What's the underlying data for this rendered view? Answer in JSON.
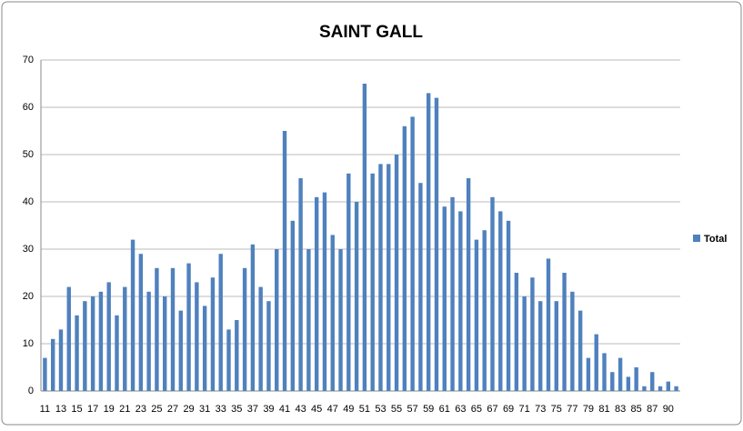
{
  "chart_data": {
    "type": "bar",
    "title": "SAINT GALL",
    "categories": [
      "11",
      null,
      "13",
      null,
      "15",
      null,
      "17",
      null,
      "19",
      null,
      "21",
      null,
      "23",
      null,
      "25",
      null,
      "27",
      null,
      "29",
      null,
      "31",
      null,
      "33",
      null,
      "35",
      null,
      "37",
      null,
      "39",
      null,
      "41",
      null,
      "43",
      null,
      "45",
      null,
      "47",
      null,
      "49",
      null,
      "51",
      null,
      "53",
      null,
      "55",
      null,
      "57",
      null,
      "59",
      null,
      "61",
      null,
      "63",
      null,
      "65",
      null,
      "67",
      null,
      "69",
      null,
      "71",
      null,
      "73",
      null,
      "75",
      null,
      "77",
      null,
      "79",
      null,
      "81",
      null,
      "83",
      null,
      "85",
      null,
      "87",
      null,
      "90",
      null
    ],
    "series": [
      {
        "name": "Total",
        "color": "#4f81bd",
        "values": [
          7,
          11,
          13,
          22,
          16,
          19,
          20,
          21,
          23,
          16,
          22,
          32,
          29,
          21,
          26,
          20,
          26,
          17,
          27,
          23,
          18,
          24,
          29,
          13,
          15,
          26,
          31,
          22,
          19,
          30,
          55,
          36,
          45,
          30,
          41,
          42,
          33,
          30,
          46,
          40,
          65,
          46,
          48,
          48,
          50,
          56,
          58,
          44,
          63,
          62,
          39,
          41,
          38,
          45,
          32,
          34,
          41,
          38,
          36,
          25,
          20,
          24,
          19,
          28,
          19,
          25,
          21,
          17,
          7,
          12,
          8,
          4,
          7,
          3,
          5,
          1,
          4,
          1,
          2,
          1
        ]
      }
    ],
    "ylim": [
      0,
      70
    ],
    "yticks": [
      0,
      10,
      20,
      30,
      40,
      50,
      60,
      70
    ],
    "grid": true,
    "legend": "right"
  }
}
